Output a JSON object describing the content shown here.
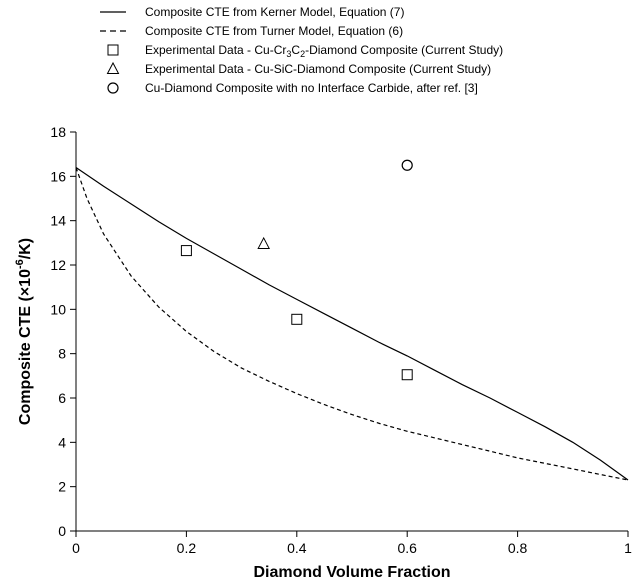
{
  "chart_data": {
    "type": "line",
    "xlabel": "Diamond Volume Fraction",
    "ylabel": {
      "prefix": "Composite CTE (",
      "times": "×",
      "base": "10",
      "exponent": "-6",
      "suffix": "/K)"
    },
    "xlim": [
      0,
      1
    ],
    "ylim": [
      0,
      18
    ],
    "x_ticks": [
      0,
      0.2,
      0.4,
      0.6,
      0.8,
      1
    ],
    "x_tick_labels": [
      "0",
      "0.2",
      "0.4",
      "0.6",
      "0.8",
      "1"
    ],
    "y_ticks": [
      0,
      2,
      4,
      6,
      8,
      10,
      12,
      14,
      16,
      18
    ],
    "y_tick_labels": [
      "0",
      "2",
      "4",
      "6",
      "8",
      "10",
      "12",
      "14",
      "16",
      "18"
    ],
    "grid": false,
    "legend_position": "top",
    "series": [
      {
        "name": "Composite CTE from Kerner Model, Equation (7)",
        "style": "solid",
        "marker": "none",
        "color": "#000000",
        "x": [
          0,
          0.05,
          0.1,
          0.15,
          0.2,
          0.25,
          0.3,
          0.35,
          0.4,
          0.45,
          0.5,
          0.55,
          0.6,
          0.65,
          0.7,
          0.75,
          0.8,
          0.85,
          0.9,
          0.95,
          1.0
        ],
        "y": [
          16.4,
          15.55,
          14.75,
          13.95,
          13.2,
          12.5,
          11.8,
          11.1,
          10.45,
          9.8,
          9.15,
          8.5,
          7.9,
          7.25,
          6.6,
          6.0,
          5.35,
          4.7,
          4.0,
          3.2,
          2.3
        ]
      },
      {
        "name": "Composite CTE from Turner Model, Equation (6)",
        "style": "dashed",
        "marker": "none",
        "color": "#000000",
        "x": [
          0,
          0.02,
          0.05,
          0.1,
          0.15,
          0.2,
          0.25,
          0.3,
          0.35,
          0.4,
          0.45,
          0.5,
          0.55,
          0.6,
          0.65,
          0.7,
          0.75,
          0.8,
          0.85,
          0.9,
          0.95,
          1.0
        ],
        "y": [
          16.4,
          15.0,
          13.4,
          11.5,
          10.1,
          9.0,
          8.1,
          7.35,
          6.75,
          6.2,
          5.7,
          5.25,
          4.85,
          4.5,
          4.2,
          3.9,
          3.6,
          3.3,
          3.05,
          2.8,
          2.55,
          2.3
        ]
      },
      {
        "name_parts": [
          "Experimental Data - Cu-Cr",
          "3",
          "C",
          "2",
          "-Diamond Composite (Current Study)"
        ],
        "style": "none",
        "marker": "square",
        "color": "#000000",
        "x": [
          0.2,
          0.4,
          0.6
        ],
        "y": [
          12.65,
          9.55,
          7.05
        ]
      },
      {
        "name": "Experimental Data - Cu-SiC-Diamond Composite (Current Study)",
        "style": "none",
        "marker": "triangle",
        "color": "#000000",
        "x": [
          0.34
        ],
        "y": [
          12.95
        ]
      },
      {
        "name": "Cu-Diamond Composite with no Interface Carbide, after ref. [3]",
        "style": "none",
        "marker": "circle",
        "color": "#000000",
        "x": [
          0.6
        ],
        "y": [
          16.5
        ]
      }
    ]
  }
}
